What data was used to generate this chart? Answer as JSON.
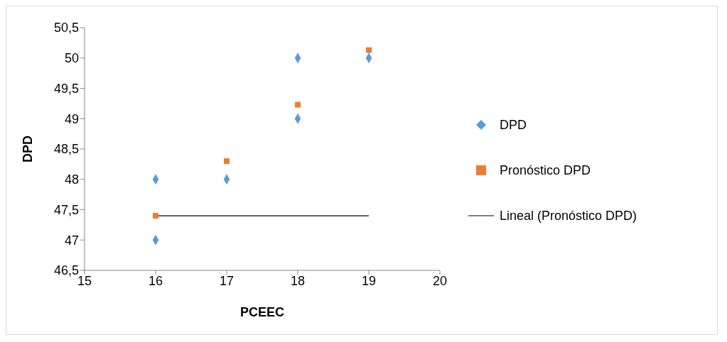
{
  "chart_data": {
    "type": "scatter",
    "xlabel": "PCEEC",
    "ylabel": "DPD",
    "xlim": [
      15,
      20
    ],
    "xticks": [
      15,
      16,
      17,
      18,
      19,
      20
    ],
    "ylim": [
      46.5,
      50.5
    ],
    "yticks": [
      {
        "value": 46.5,
        "label": "46,5"
      },
      {
        "value": 47,
        "label": "47"
      },
      {
        "value": 47.5,
        "label": "47,5"
      },
      {
        "value": 48,
        "label": "48"
      },
      {
        "value": 48.5,
        "label": "48,5"
      },
      {
        "value": 49,
        "label": "49"
      },
      {
        "value": 49.5,
        "label": "49,5"
      },
      {
        "value": 50,
        "label": "50"
      },
      {
        "value": 50.5,
        "label": "50,5"
      }
    ],
    "grid": false,
    "legend": "right",
    "series": [
      {
        "name": "DPD",
        "marker": "diamond",
        "color": "#5b9bd5",
        "x": [
          16,
          16,
          17,
          18,
          18,
          19
        ],
        "values": [
          48,
          47,
          48,
          50,
          49,
          50
        ]
      },
      {
        "name": "Pronóstico DPD",
        "marker": "square",
        "color": "#ed7d31",
        "x": [
          16,
          17,
          18,
          19
        ],
        "values": [
          47.4,
          48.3,
          49.23,
          50.13
        ]
      },
      {
        "name": "Lineal (Pronóstico DPD)",
        "type": "line",
        "marker": "none",
        "line_style": "solid",
        "color": "#000000",
        "x": [
          16,
          19
        ],
        "values": [
          47.4,
          47.4
        ]
      }
    ]
  }
}
